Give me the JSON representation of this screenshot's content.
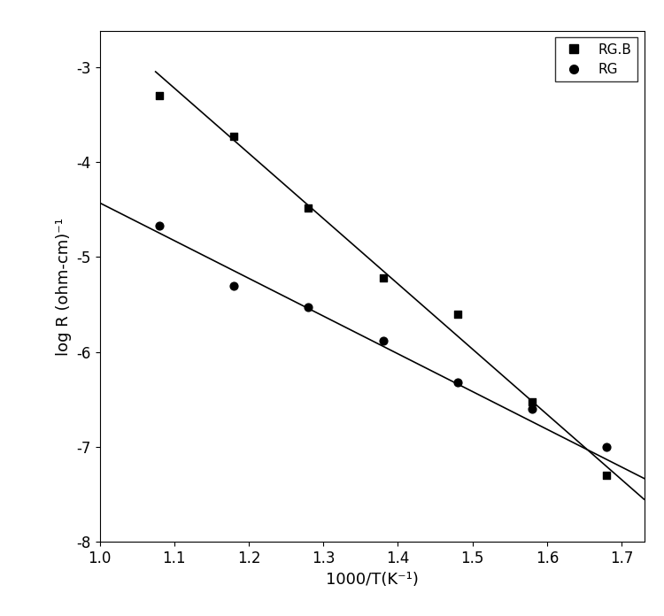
{
  "chart_data": {
    "type": "scatter",
    "x_label": "1000/T(K⁻¹)",
    "y_label": "log R (ohm-cm)⁻¹",
    "xlim": [
      1.0,
      1.73
    ],
    "xticks": [
      1.0,
      1.1,
      1.2,
      1.3,
      1.4,
      1.5,
      1.6,
      1.7
    ],
    "ylim": [
      -8,
      -2.62
    ],
    "yticks": [
      -8,
      -7,
      -6,
      -5,
      -4,
      -3
    ],
    "legend": "upper right",
    "grid": false,
    "series": [
      {
        "name": "RG.B",
        "type": "scatter",
        "marker": "square",
        "color": "#000000",
        "x": [
          1.08,
          1.18,
          1.28,
          1.38,
          1.48,
          1.58,
          1.68
        ],
        "values": [
          -3.3,
          -3.73,
          -4.48,
          -5.22,
          -5.6,
          -6.52,
          -7.3
        ]
      },
      {
        "name": "RG",
        "type": "scatter",
        "marker": "circle",
        "color": "#000000",
        "x": [
          1.08,
          1.18,
          1.28,
          1.38,
          1.48,
          1.58,
          1.68
        ],
        "values": [
          -4.67,
          -5.3,
          -5.53,
          -5.88,
          -6.32,
          -6.6,
          -7.0
        ]
      },
      {
        "type": "line",
        "line_style": "solid",
        "color": "#000000",
        "x": [
          1.075,
          1.73
        ],
        "values": [
          -3.05,
          -7.55
        ]
      },
      {
        "type": "line",
        "line_style": "solid",
        "color": "#000000",
        "x": [
          1.0,
          1.73
        ],
        "values": [
          -4.43,
          -7.33
        ]
      }
    ]
  }
}
